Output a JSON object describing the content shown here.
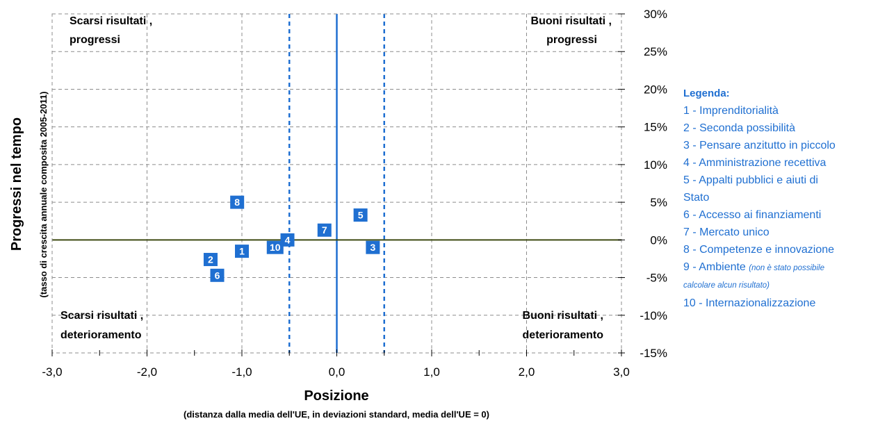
{
  "chart_data": {
    "type": "scatter",
    "x_axis": {
      "title": "Posizione",
      "subtitle": "(distanza dalla media dell'UE, in deviazioni standard, media dell'UE = 0)",
      "range": [
        -3,
        3
      ],
      "ticks": [
        -3,
        -2,
        -1,
        0,
        1,
        2,
        3
      ],
      "tick_labels": [
        "-3,0",
        "-2,0",
        "-1,0",
        "0,0",
        "1,0",
        "2,0",
        "3,0"
      ]
    },
    "y_axis": {
      "title": "Progressi nel tempo",
      "subtitle": "(tasso di crescita annuale composita 2005-2011)",
      "range": [
        -15,
        30
      ],
      "unit": "%",
      "ticks": [
        30,
        25,
        20,
        15,
        10,
        5,
        0,
        -5,
        -10,
        -15
      ],
      "tick_labels": [
        "30%",
        "25%",
        "20%",
        "15%",
        "10%",
        "5%",
        "0%",
        "-5%",
        "-10%",
        "-15%"
      ],
      "position": "right"
    },
    "grid": true,
    "reference_lines": {
      "solid_x": 0,
      "dashed_x": [
        -0.5,
        0.5
      ],
      "horizontal_y": 0
    },
    "quadrants": {
      "top_left": [
        "Scarsi risultati ,",
        "progressi"
      ],
      "top_right": [
        "Buoni risultati ,",
        "progressi"
      ],
      "bottom_left": [
        "Scarsi risultati ,",
        "deterioramento"
      ],
      "bottom_right": [
        "Buoni risultati ,",
        "deterioramento"
      ]
    },
    "points": [
      {
        "label": "1",
        "x": -1.0,
        "y": -1.5
      },
      {
        "label": "2",
        "x": -1.33,
        "y": -2.6
      },
      {
        "label": "3",
        "x": 0.38,
        "y": -1.0
      },
      {
        "label": "4",
        "x": -0.52,
        "y": 0.0
      },
      {
        "label": "5",
        "x": 0.25,
        "y": 3.3
      },
      {
        "label": "6",
        "x": -1.26,
        "y": -4.7
      },
      {
        "label": "7",
        "x": -0.13,
        "y": 1.3
      },
      {
        "label": "8",
        "x": -1.05,
        "y": 5.0
      },
      {
        "label": "10",
        "x": -0.65,
        "y": -1.0
      }
    ],
    "marker_color": "#1f6fd1",
    "legend_placement": "right"
  },
  "legend": {
    "title": "Legenda:",
    "items": [
      "1 - Imprenditorialità",
      "2 - Seconda possibilità",
      "3 - Pensare anzitutto in piccolo",
      "4 - Amministrazione recettiva",
      "5 - Appalti pubblici e aiuti di",
      "Stato",
      "6 -  Accesso ai finanziamenti",
      "7 - Mercato unico",
      "8 - Competenze e innovazione"
    ],
    "item9_main": "9 - Ambiente",
    "item9_note_a": "(non è stato possibile",
    "item9_note_b": "calcolare alcun risultato)",
    "item10": "10 - Internazionalizzazione"
  },
  "colors": {
    "accent": "#1f6fd1",
    "zero_line": "#3d4a12",
    "grid": "#8c8c8c"
  }
}
